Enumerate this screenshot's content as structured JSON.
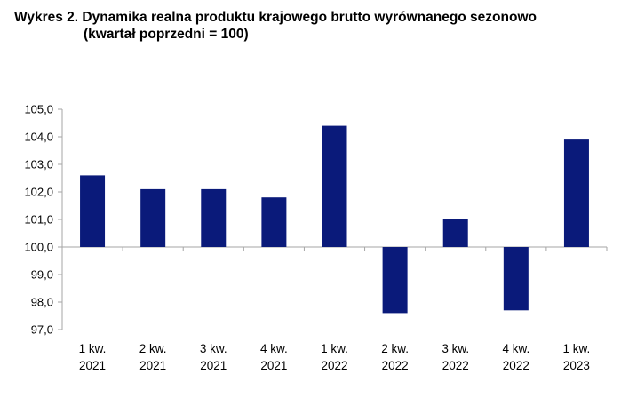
{
  "title": {
    "line1": "Wykres 2. Dynamika realna produktu krajowego brutto wyrównanego sezonowo",
    "line2": "(kwartał poprzedni = 100)"
  },
  "chart_data": {
    "type": "bar",
    "categories": [
      [
        "1 kw.",
        "2021"
      ],
      [
        "2 kw.",
        "2021"
      ],
      [
        "3 kw.",
        "2021"
      ],
      [
        "4 kw.",
        "2021"
      ],
      [
        "1 kw.",
        "2022"
      ],
      [
        "2 kw.",
        "2022"
      ],
      [
        "3 kw.",
        "2022"
      ],
      [
        "4 kw.",
        "2022"
      ],
      [
        "1 kw.",
        "2023"
      ]
    ],
    "values": [
      102.6,
      102.1,
      102.1,
      101.8,
      104.4,
      97.6,
      101.0,
      97.7,
      103.9
    ],
    "baseline": 100.0,
    "ylim": [
      97.0,
      105.0
    ],
    "yticks": [
      "97,0",
      "98,0",
      "99,0",
      "100,0",
      "101,0",
      "102,0",
      "103,0",
      "104,0",
      "105,0"
    ],
    "xlabel": "",
    "ylabel": "",
    "grid": false,
    "bar_color": "#0a1a7a",
    "axis_color": "#a6a6a6"
  }
}
